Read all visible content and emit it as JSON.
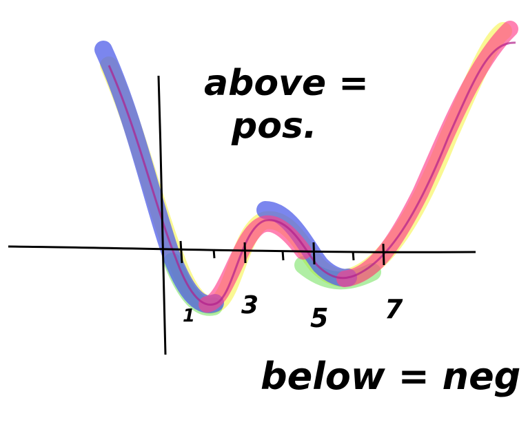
{
  "annotations": {
    "above": [
      "above =",
      "pos."
    ],
    "below": "below = neg"
  },
  "axis_labels": [
    "1",
    "3",
    "5",
    "7"
  ]
}
